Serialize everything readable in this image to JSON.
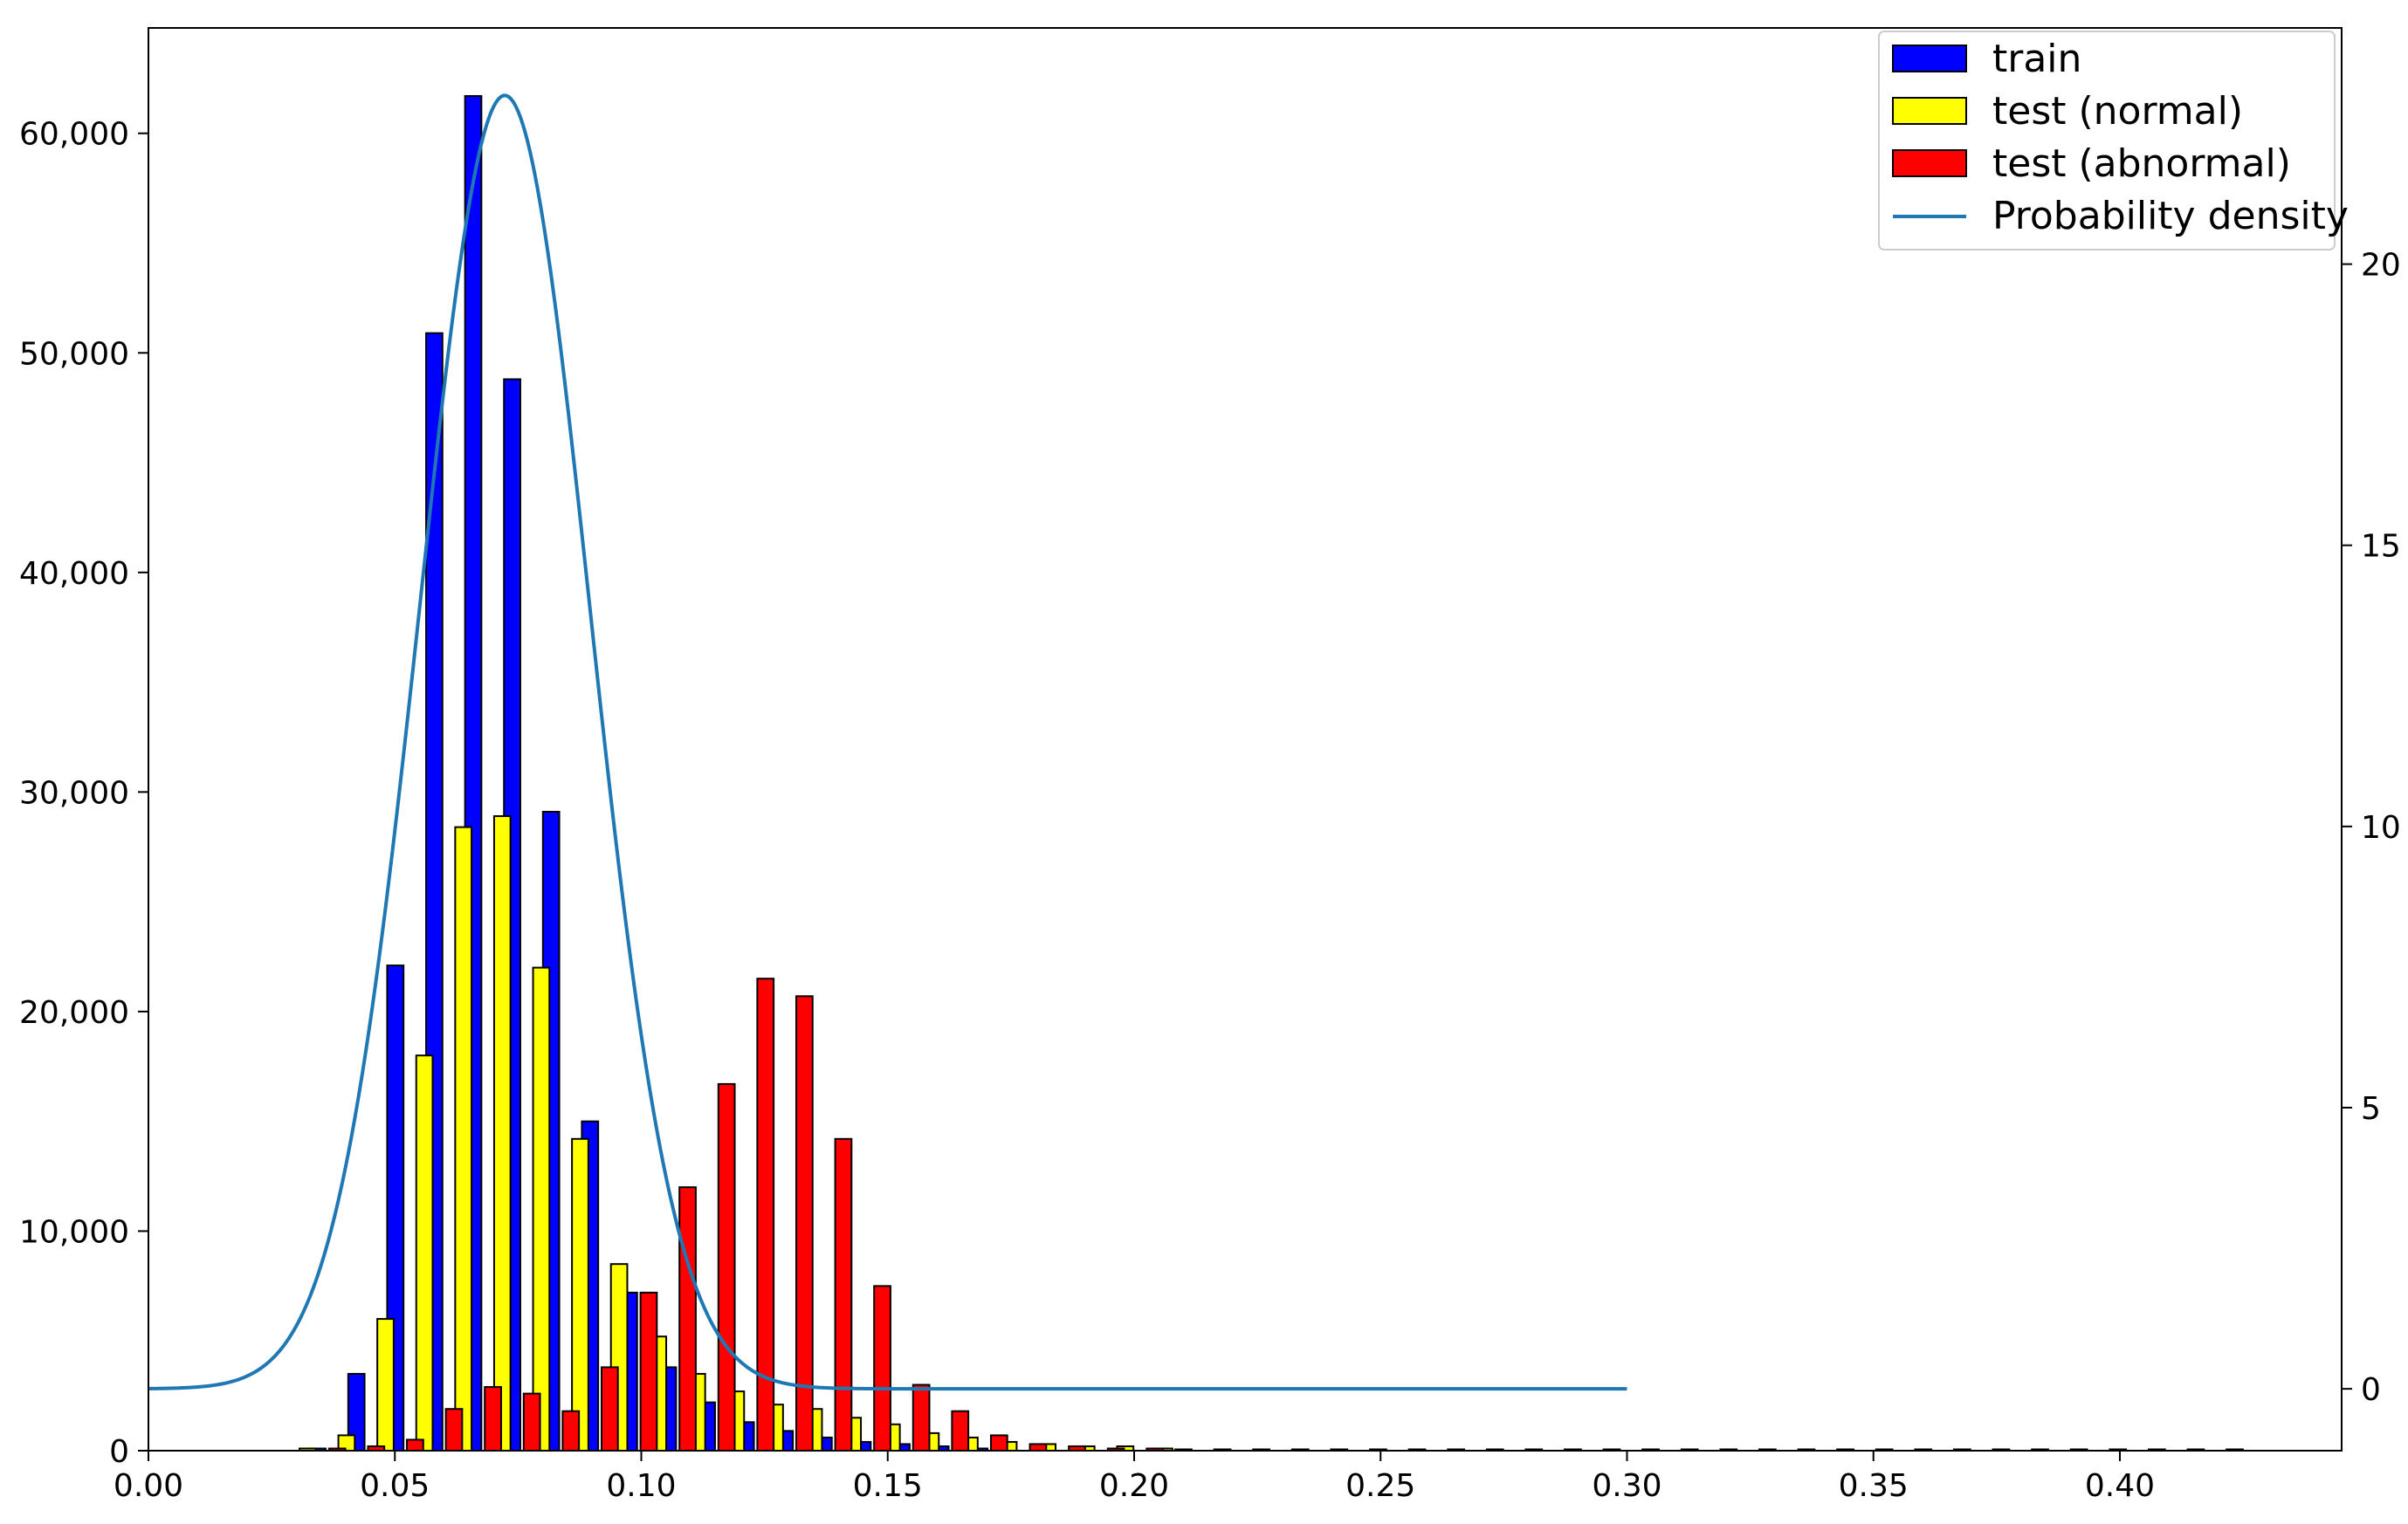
{
  "chart_data": {
    "type": "bar",
    "title": "",
    "xlabel": "",
    "ylabel": "",
    "y2label": "",
    "xlim": [
      0.0,
      0.445
    ],
    "ylim": [
      0,
      64800
    ],
    "y2lim": [
      -1.1,
      24.2
    ],
    "x_ticks": [
      0.0,
      0.05,
      0.1,
      0.15,
      0.2,
      0.25,
      0.3,
      0.35,
      0.4
    ],
    "x_tick_labels": [
      "0.00",
      "0.05",
      "0.10",
      "0.15",
      "0.20",
      "0.25",
      "0.30",
      "0.35",
      "0.40"
    ],
    "y_ticks": [
      0,
      10000,
      20000,
      30000,
      40000,
      50000,
      60000
    ],
    "y_tick_labels": [
      "0",
      "10,000",
      "20,000",
      "30,000",
      "40,000",
      "50,000",
      "60,000"
    ],
    "y2_ticks": [
      0,
      5,
      10,
      15,
      20
    ],
    "y2_tick_labels": [
      "0",
      "5",
      "10",
      "15",
      "20"
    ],
    "grid": false,
    "legend_position": "top-right",
    "bin_width": 0.0079,
    "series": [
      {
        "name": "train",
        "color": "#0000ff",
        "x": [
          0.0343,
          0.0422,
          0.0501,
          0.058,
          0.0659,
          0.0738,
          0.0817,
          0.0896,
          0.0975,
          0.1054,
          0.1133,
          0.1212,
          0.1291,
          0.137,
          0.1449,
          0.1528,
          0.1607,
          0.1686
        ],
        "values": [
          100,
          3500,
          22100,
          50900,
          61700,
          48800,
          29100,
          15000,
          7200,
          3800,
          2200,
          1300,
          900,
          600,
          400,
          300,
          200,
          100
        ]
      },
      {
        "name": "test (normal)",
        "color": "#ffff00",
        "x": [
          0.0323,
          0.0402,
          0.0481,
          0.056,
          0.0639,
          0.0718,
          0.0797,
          0.0876,
          0.0955,
          0.1034,
          0.1113,
          0.1192,
          0.1271,
          0.135,
          0.1429,
          0.1508,
          0.1587,
          0.1666,
          0.1745,
          0.1824,
          0.1903,
          0.1982,
          0.2061
        ],
        "values": [
          100,
          700,
          6000,
          18000,
          28400,
          28900,
          22000,
          14200,
          8500,
          5200,
          3500,
          2700,
          2100,
          1900,
          1500,
          1200,
          800,
          600,
          400,
          300,
          200,
          200,
          100
        ]
      },
      {
        "name": "test (abnormal)",
        "color": "#ff0000",
        "x": [
          0.0383,
          0.0462,
          0.0541,
          0.062,
          0.0699,
          0.0778,
          0.0857,
          0.0936,
          0.1015,
          0.1094,
          0.1173,
          0.1252,
          0.1331,
          0.141,
          0.1489,
          0.1568,
          0.1647,
          0.1726,
          0.1805,
          0.1884,
          0.1963,
          0.2042
        ],
        "values": [
          100,
          200,
          500,
          1900,
          2900,
          2600,
          1800,
          3800,
          7200,
          12000,
          16700,
          21500,
          20700,
          14200,
          7500,
          3000,
          1800,
          700,
          300,
          200,
          100,
          100
        ]
      }
    ],
    "density": {
      "name": "Probability density",
      "color": "#1f77b4",
      "mean": 0.0723,
      "std": 0.0172,
      "x_range": [
        0.0,
        0.3
      ],
      "peak": 23.0
    },
    "sparse_tail": {
      "x_range": [
        0.21,
        0.43
      ],
      "value": 60,
      "step": 0.0079
    }
  }
}
